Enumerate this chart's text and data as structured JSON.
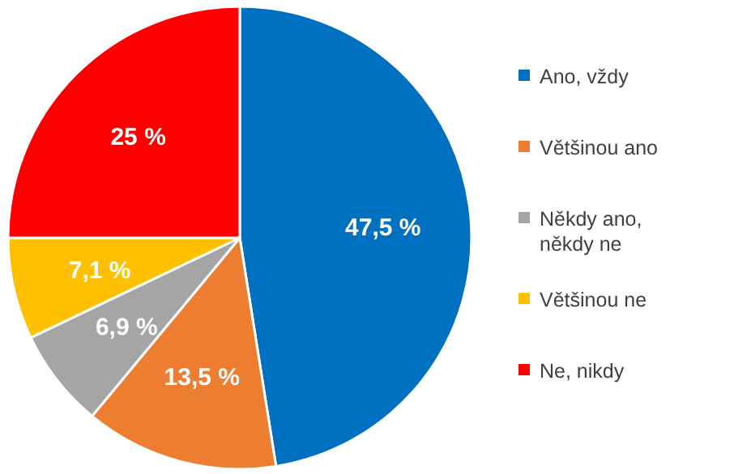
{
  "chart_data": {
    "type": "pie",
    "categories": [
      "Ano, vždy",
      "Většinou ano",
      "Někdy ano, někdy ne",
      "Většinou ne",
      "Ne, nikdy"
    ],
    "values": [
      47.5,
      13.5,
      6.9,
      7.1,
      25
    ],
    "colors": [
      "#0070c0",
      "#ed7d31",
      "#a5a5a5",
      "#ffc000",
      "#ff0000"
    ],
    "value_labels": [
      "47,5 %",
      "13,5 %",
      "6,9 %",
      "7,1 %",
      "25 %"
    ],
    "legend": "right"
  }
}
